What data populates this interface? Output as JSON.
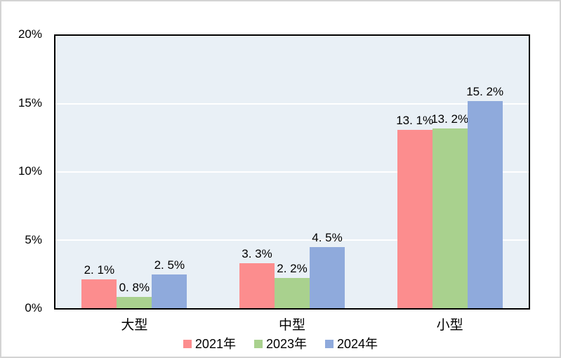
{
  "chart_data": {
    "type": "bar",
    "title": "",
    "xlabel": "",
    "ylabel": "",
    "categories": [
      "大型",
      "中型",
      "小型"
    ],
    "series": [
      {
        "name": "2021年",
        "color": "#fc8d8e",
        "values": [
          2.1,
          3.3,
          13.1
        ],
        "labels": [
          "2. 1%",
          "3. 3%",
          "13. 1%"
        ]
      },
      {
        "name": "2023年",
        "color": "#a9d18e",
        "values": [
          0.8,
          2.2,
          13.2
        ],
        "labels": [
          "0. 8%",
          "2. 2%",
          "13. 2%"
        ]
      },
      {
        "name": "2024年",
        "color": "#8faadc",
        "values": [
          2.5,
          4.5,
          15.2
        ],
        "labels": [
          "2. 5%",
          "4. 5%",
          "15. 2%"
        ]
      }
    ],
    "ylim": [
      0,
      20
    ],
    "yticks": [
      "0%",
      "5%",
      "10%",
      "15%",
      "20%"
    ],
    "grid": true,
    "gridline_color": "#ffffff",
    "plot_background": "#e9f0f6",
    "axis_border_color": "#000000",
    "legend_position": "bottom"
  }
}
